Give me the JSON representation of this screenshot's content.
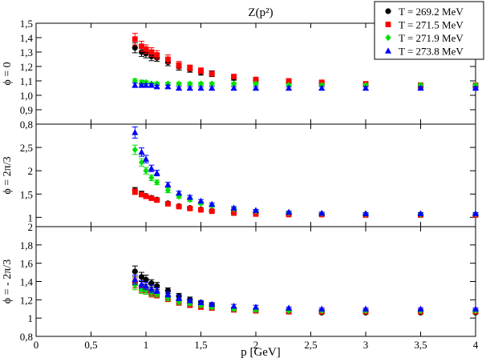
{
  "chart_data": {
    "type": "scatter",
    "title": "Z(p²)",
    "xlabel": "p [GeV]",
    "xlim": [
      0,
      4
    ],
    "xticks": [
      0,
      0.5,
      1,
      1.5,
      2,
      2.5,
      3,
      3.5,
      4
    ],
    "xtick_labels": [
      "0",
      "0,5",
      "1",
      "1,5",
      "2",
      "2,5",
      "3",
      "3,5",
      "4"
    ],
    "legend": {
      "placement": "top-right",
      "entries": [
        {
          "name": "T = 269.2 MeV",
          "color": "#000000",
          "marker": "circle"
        },
        {
          "name": "T = 271.5 MeV",
          "color": "#ff0000",
          "marker": "square"
        },
        {
          "name": "T = 271.9 MeV",
          "color": "#00e000",
          "marker": "diamond"
        },
        {
          "name": "T = 273.8 MeV",
          "color": "#0000ff",
          "marker": "triangle"
        }
      ]
    },
    "panels": [
      {
        "ylabel": "ϕ = 0",
        "ylim": [
          0.8,
          1.5
        ],
        "yticks": [
          0.8,
          0.9,
          1.0,
          1.1,
          1.2,
          1.3,
          1.4,
          1.5
        ],
        "ytick_labels": [
          "0,8",
          "0,9",
          "1,0",
          "1,1",
          "1,2",
          "1,3",
          "1,4",
          "1,5"
        ],
        "series": [
          {
            "name": "T = 269.2 MeV",
            "x": [
              0.9,
              0.96,
              1.0,
              1.05,
              1.1,
              1.2,
              1.3,
              1.4,
              1.5,
              1.6,
              1.8,
              2.0,
              2.3,
              2.6,
              3.0,
              3.5,
              4.0
            ],
            "y": [
              1.33,
              1.3,
              1.29,
              1.27,
              1.26,
              1.23,
              1.2,
              1.18,
              1.16,
              1.15,
              1.12,
              1.1,
              1.09,
              1.08,
              1.07,
              1.06,
              1.06
            ],
            "err": [
              0.035,
              0.03,
              0.03,
              0.03,
              0.025,
              0.025,
              0.025,
              0.02,
              0.02,
              0.02,
              0.015,
              0.01,
              0.01,
              0.01,
              0.01,
              0.01,
              0.01
            ]
          },
          {
            "name": "T = 271.5 MeV",
            "x": [
              0.9,
              0.96,
              1.0,
              1.05,
              1.1,
              1.2,
              1.3,
              1.4,
              1.5,
              1.6,
              1.8,
              2.0,
              2.3,
              2.6,
              3.0,
              3.5,
              4.0
            ],
            "y": [
              1.39,
              1.34,
              1.32,
              1.3,
              1.28,
              1.25,
              1.21,
              1.19,
              1.17,
              1.15,
              1.13,
              1.11,
              1.1,
              1.09,
              1.08,
              1.07,
              1.07
            ],
            "err": [
              0.04,
              0.035,
              0.03,
              0.03,
              0.03,
              0.03,
              0.025,
              0.02,
              0.02,
              0.015,
              0.015,
              0.01,
              0.01,
              0.01,
              0.01,
              0.01,
              0.01
            ]
          },
          {
            "name": "T = 271.9 MeV",
            "x": [
              0.9,
              0.96,
              1.0,
              1.05,
              1.1,
              1.2,
              1.3,
              1.4,
              1.5,
              1.6,
              1.8,
              2.0,
              2.3,
              2.6,
              3.0,
              3.5,
              4.0
            ],
            "y": [
              1.1,
              1.09,
              1.09,
              1.08,
              1.08,
              1.08,
              1.08,
              1.08,
              1.08,
              1.08,
              1.08,
              1.08,
              1.07,
              1.07,
              1.07,
              1.07,
              1.07
            ],
            "err": [
              0.015,
              0.015,
              0.01,
              0.01,
              0.01,
              0.01,
              0.01,
              0.01,
              0.01,
              0.01,
              0.01,
              0.01,
              0.01,
              0.01,
              0.01,
              0.01,
              0.01
            ]
          },
          {
            "name": "T = 273.8 MeV",
            "x": [
              0.9,
              0.96,
              1.0,
              1.05,
              1.1,
              1.2,
              1.3,
              1.4,
              1.5,
              1.6,
              1.8,
              2.0,
              2.3,
              2.6,
              3.0,
              3.5,
              4.0
            ],
            "y": [
              1.07,
              1.07,
              1.07,
              1.07,
              1.06,
              1.06,
              1.05,
              1.05,
              1.05,
              1.05,
              1.05,
              1.05,
              1.05,
              1.05,
              1.05,
              1.05,
              1.05
            ],
            "err": [
              0.015,
              0.01,
              0.01,
              0.01,
              0.01,
              0.01,
              0.01,
              0.01,
              0.01,
              0.01,
              0.01,
              0.01,
              0.01,
              0.01,
              0.01,
              0.01,
              0.01
            ]
          }
        ]
      },
      {
        "ylabel": "ϕ = 2π/3",
        "ylim": [
          0.8,
          3.0
        ],
        "yticks": [
          1.0,
          1.5,
          2.0,
          2.5
        ],
        "ytick_labels": [
          "1",
          "1,5",
          "2",
          "2,5"
        ],
        "series": [
          {
            "name": "T = 269.2 MeV",
            "x": [
              0.9,
              0.96,
              1.0,
              1.05,
              1.1,
              1.2,
              1.3,
              1.4,
              1.5,
              1.6,
              1.8,
              2.0,
              2.3,
              2.6,
              3.0,
              3.5,
              4.0
            ],
            "y": [
              1.58,
              1.51,
              1.46,
              1.42,
              1.38,
              1.3,
              1.24,
              1.2,
              1.17,
              1.14,
              1.1,
              1.08,
              1.07,
              1.06,
              1.06,
              1.06,
              1.06
            ],
            "err": [
              0.06,
              0.05,
              0.04,
              0.04,
              0.04,
              0.03,
              0.03,
              0.03,
              0.02,
              0.02,
              0.02,
              0.02,
              0.02,
              0.01,
              0.01,
              0.01,
              0.01
            ]
          },
          {
            "name": "T = 271.5 MeV",
            "x": [
              0.9,
              0.96,
              1.0,
              1.05,
              1.1,
              1.2,
              1.3,
              1.4,
              1.5,
              1.6,
              1.8,
              2.0,
              2.3,
              2.6,
              3.0,
              3.5,
              4.0
            ],
            "y": [
              1.55,
              1.49,
              1.45,
              1.41,
              1.37,
              1.29,
              1.23,
              1.19,
              1.16,
              1.13,
              1.09,
              1.07,
              1.06,
              1.06,
              1.05,
              1.05,
              1.05
            ],
            "err": [
              0.06,
              0.05,
              0.04,
              0.04,
              0.04,
              0.03,
              0.03,
              0.03,
              0.02,
              0.02,
              0.02,
              0.02,
              0.02,
              0.01,
              0.01,
              0.01,
              0.01
            ]
          },
          {
            "name": "T = 271.9 MeV",
            "x": [
              0.9,
              0.96,
              1.0,
              1.05,
              1.1,
              1.2,
              1.3,
              1.4,
              1.5,
              1.6,
              1.8,
              2.0,
              2.3,
              2.6,
              3.0,
              3.5,
              4.0
            ],
            "y": [
              2.45,
              2.18,
              2.0,
              1.85,
              1.75,
              1.58,
              1.45,
              1.38,
              1.3,
              1.25,
              1.18,
              1.13,
              1.1,
              1.08,
              1.07,
              1.07,
              1.07
            ],
            "err": [
              0.1,
              0.08,
              0.07,
              0.06,
              0.05,
              0.05,
              0.04,
              0.04,
              0.03,
              0.03,
              0.03,
              0.02,
              0.02,
              0.02,
              0.02,
              0.02,
              0.02
            ]
          },
          {
            "name": "T = 273.8 MeV",
            "x": [
              0.9,
              0.96,
              1.0,
              1.05,
              1.1,
              1.2,
              1.3,
              1.4,
              1.5,
              1.6,
              1.8,
              2.0,
              2.3,
              2.6,
              3.0,
              3.5,
              4.0
            ],
            "y": [
              2.82,
              2.4,
              2.25,
              2.05,
              1.95,
              1.7,
              1.52,
              1.43,
              1.35,
              1.28,
              1.2,
              1.15,
              1.11,
              1.09,
              1.08,
              1.08,
              1.08
            ],
            "err": [
              0.12,
              0.09,
              0.08,
              0.07,
              0.06,
              0.05,
              0.04,
              0.04,
              0.03,
              0.03,
              0.03,
              0.02,
              0.02,
              0.02,
              0.02,
              0.02,
              0.02
            ]
          }
        ]
      },
      {
        "ylabel": "ϕ = - 2π/3",
        "ylim": [
          0.8,
          2.0
        ],
        "yticks": [
          0.8,
          1.0,
          1.2,
          1.4,
          1.6,
          1.8,
          2.0
        ],
        "ytick_labels": [
          "0,8",
          "1",
          "1,2",
          "1,4",
          "1,6",
          "1,8",
          "2"
        ],
        "series": [
          {
            "name": "T = 269.2 MeV",
            "x": [
              0.9,
              0.96,
              1.0,
              1.05,
              1.1,
              1.2,
              1.3,
              1.4,
              1.5,
              1.6,
              1.8,
              2.0,
              2.3,
              2.6,
              3.0,
              3.5,
              4.0
            ],
            "y": [
              1.51,
              1.45,
              1.42,
              1.38,
              1.35,
              1.3,
              1.24,
              1.2,
              1.17,
              1.14,
              1.1,
              1.08,
              1.07,
              1.06,
              1.06,
              1.06,
              1.06
            ],
            "err": [
              0.06,
              0.05,
              0.05,
              0.04,
              0.04,
              0.03,
              0.03,
              0.03,
              0.02,
              0.02,
              0.02,
              0.02,
              0.02,
              0.01,
              0.01,
              0.01,
              0.01
            ]
          },
          {
            "name": "T = 271.5 MeV",
            "x": [
              0.9,
              0.96,
              1.0,
              1.05,
              1.1,
              1.2,
              1.3,
              1.4,
              1.5,
              1.6,
              1.8,
              2.0,
              2.3,
              2.6,
              3.0,
              3.5,
              4.0
            ],
            "y": [
              1.38,
              1.32,
              1.3,
              1.27,
              1.25,
              1.21,
              1.17,
              1.14,
              1.12,
              1.11,
              1.09,
              1.08,
              1.07,
              1.07,
              1.07,
              1.07,
              1.07
            ],
            "err": [
              0.05,
              0.04,
              0.04,
              0.04,
              0.03,
              0.03,
              0.03,
              0.02,
              0.02,
              0.02,
              0.02,
              0.02,
              0.01,
              0.01,
              0.01,
              0.01,
              0.01
            ]
          },
          {
            "name": "T = 271.9 MeV",
            "x": [
              0.9,
              0.96,
              1.0,
              1.05,
              1.1,
              1.2,
              1.3,
              1.4,
              1.5,
              1.6,
              1.8,
              2.0,
              2.3,
              2.6,
              3.0,
              3.5,
              4.0
            ],
            "y": [
              1.36,
              1.31,
              1.3,
              1.28,
              1.26,
              1.22,
              1.18,
              1.16,
              1.14,
              1.12,
              1.1,
              1.09,
              1.08,
              1.08,
              1.08,
              1.08,
              1.08
            ],
            "err": [
              0.05,
              0.04,
              0.04,
              0.04,
              0.03,
              0.03,
              0.03,
              0.02,
              0.02,
              0.02,
              0.02,
              0.02,
              0.01,
              0.01,
              0.01,
              0.01,
              0.01
            ]
          },
          {
            "name": "T = 273.8 MeV",
            "x": [
              0.9,
              0.96,
              1.0,
              1.05,
              1.1,
              1.2,
              1.3,
              1.4,
              1.5,
              1.6,
              1.8,
              2.0,
              2.3,
              2.6,
              3.0,
              3.5,
              4.0
            ],
            "y": [
              1.42,
              1.37,
              1.35,
              1.32,
              1.3,
              1.26,
              1.22,
              1.19,
              1.17,
              1.15,
              1.13,
              1.12,
              1.11,
              1.1,
              1.1,
              1.1,
              1.1
            ],
            "err": [
              0.05,
              0.04,
              0.04,
              0.04,
              0.03,
              0.03,
              0.03,
              0.02,
              0.02,
              0.02,
              0.02,
              0.02,
              0.01,
              0.01,
              0.01,
              0.01,
              0.01
            ]
          }
        ]
      }
    ]
  }
}
